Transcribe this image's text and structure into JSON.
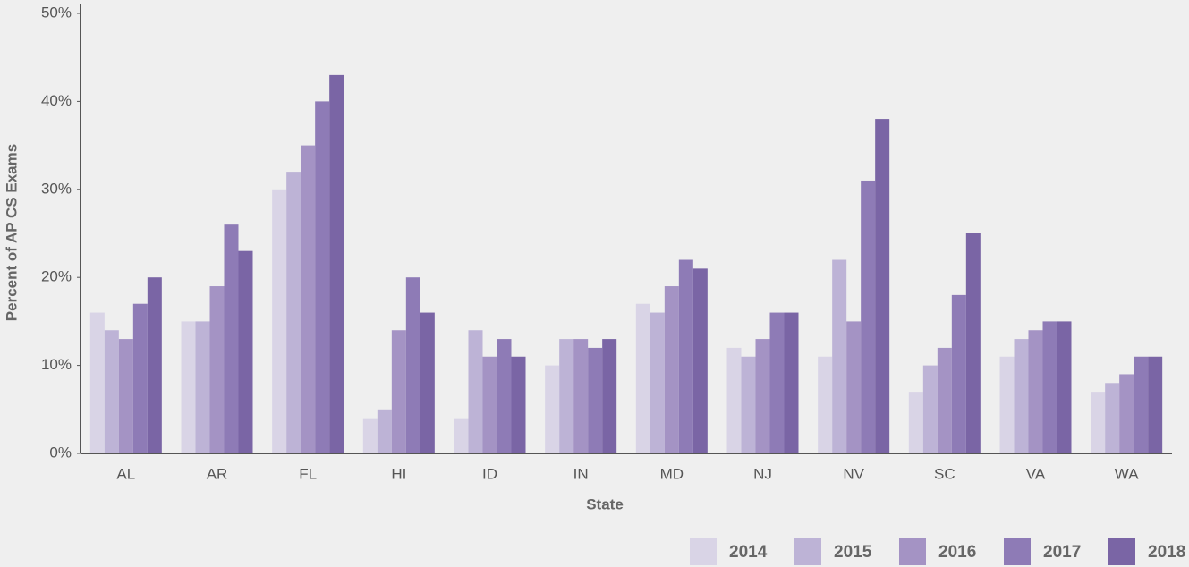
{
  "chart_data": {
    "type": "bar",
    "x_label": "State",
    "y_label": "Percent of AP CS Exams",
    "categories": [
      "AL",
      "AR",
      "FL",
      "HI",
      "ID",
      "IN",
      "MD",
      "NJ",
      "NV",
      "SC",
      "VA",
      "WA"
    ],
    "series": [
      {
        "name": "2014",
        "color": "#d9d4e6",
        "values": [
          16,
          15,
          30,
          4,
          4,
          10,
          17,
          12,
          11,
          7,
          11,
          7
        ]
      },
      {
        "name": "2015",
        "color": "#bdb3d6",
        "values": [
          14,
          15,
          32,
          5,
          14,
          13,
          16,
          11,
          22,
          10,
          13,
          8
        ]
      },
      {
        "name": "2016",
        "color": "#a493c4",
        "values": [
          13,
          19,
          35,
          14,
          11,
          13,
          19,
          13,
          15,
          12,
          14,
          9
        ]
      },
      {
        "name": "2017",
        "color": "#8e7bb6",
        "values": [
          17,
          26,
          40,
          20,
          13,
          12,
          22,
          16,
          31,
          18,
          15,
          11
        ]
      },
      {
        "name": "2018",
        "color": "#7a65a5",
        "values": [
          20,
          23,
          43,
          16,
          11,
          13,
          21,
          16,
          38,
          25,
          15,
          11
        ]
      }
    ],
    "ylim": [
      0,
      50
    ],
    "yticks": [
      {
        "value": 0,
        "label": "0%"
      },
      {
        "value": 10,
        "label": "10%"
      },
      {
        "value": 20,
        "label": "20%"
      },
      {
        "value": 30,
        "label": "30%"
      },
      {
        "value": 40,
        "label": "40%"
      },
      {
        "value": 50,
        "label": "50%"
      }
    ],
    "legend": "bottom-right"
  }
}
